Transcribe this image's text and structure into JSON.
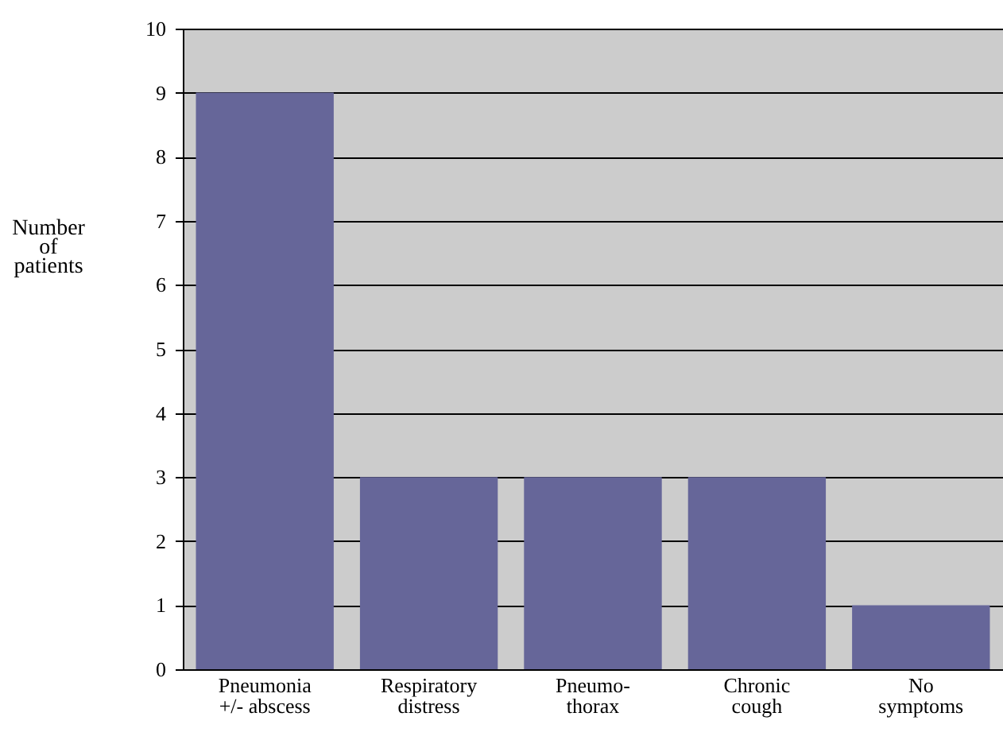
{
  "chart_data": {
    "type": "bar",
    "ylabel": "Number\nof\npatients",
    "categories": [
      "Pneumonia\n+/- abscess",
      "Respiratory\ndistress",
      "Pneumo-\nthorax",
      "Chronic\ncough",
      "No\nsymptoms"
    ],
    "values": [
      9,
      3,
      3,
      3,
      1
    ],
    "color": "#666699",
    "ylim": [
      0,
      10
    ],
    "yticks": [
      0,
      1,
      2,
      3,
      4,
      5,
      6,
      7,
      8,
      9,
      10
    ],
    "grid": "y"
  }
}
